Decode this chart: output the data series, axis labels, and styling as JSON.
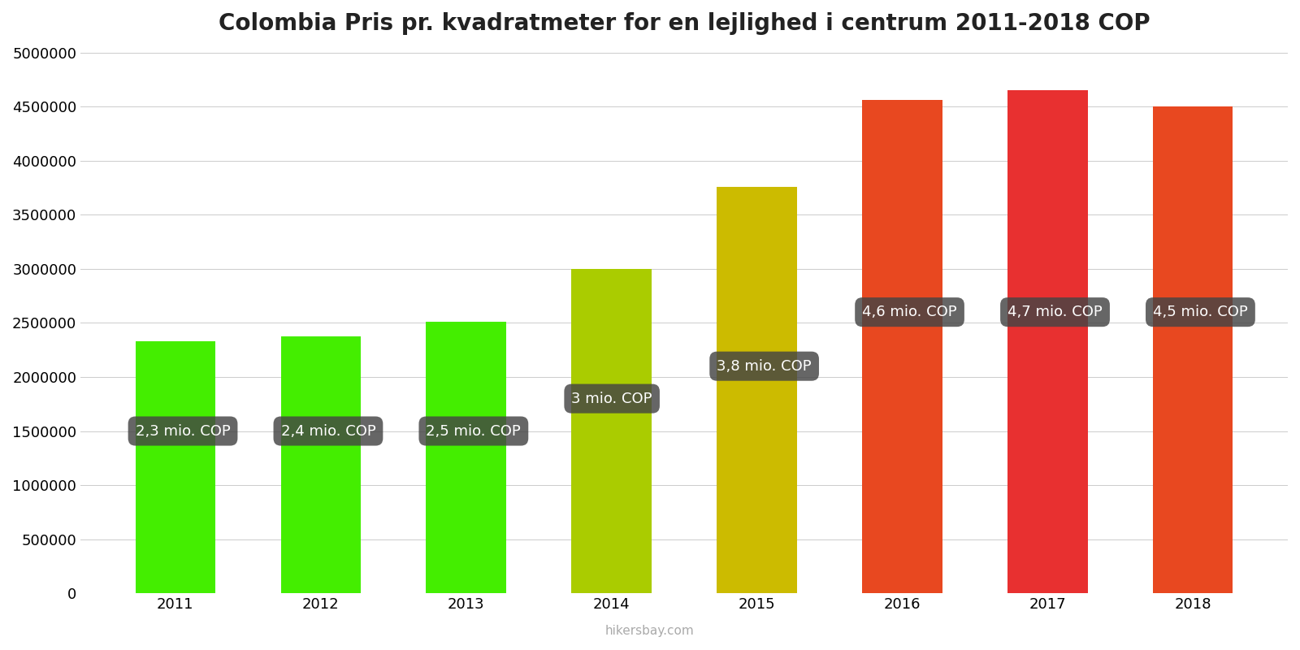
{
  "title": "Colombia Pris pr. kvadratmeter for en lejlighed i centrum 2011-2018 COP",
  "years": [
    2011,
    2012,
    2013,
    2014,
    2015,
    2016,
    2017,
    2018
  ],
  "values": [
    2330000,
    2375000,
    2510000,
    3000000,
    3760000,
    4560000,
    4650000,
    4500000
  ],
  "bar_colors": [
    "#44ee00",
    "#44ee00",
    "#44ee00",
    "#aacc00",
    "#ccbb00",
    "#e84820",
    "#e83030",
    "#e84820"
  ],
  "labels": [
    "2,3 mio. COP",
    "2,4 mio. COP",
    "2,5 mio. COP",
    "3 mio. COP",
    "3,8 mio. COP",
    "4,6 mio. COP",
    "4,7 mio. COP",
    "4,5 mio. COP"
  ],
  "label_y_positions": [
    1500000,
    1500000,
    1500000,
    1800000,
    2100000,
    2600000,
    2600000,
    2600000
  ],
  "ylim": [
    0,
    5000000
  ],
  "yticks": [
    0,
    500000,
    1000000,
    1500000,
    2000000,
    2500000,
    3000000,
    3500000,
    4000000,
    4500000,
    5000000
  ],
  "background_color": "#ffffff",
  "watermark": "hikersbay.com",
  "title_fontsize": 20,
  "bar_width": 0.55
}
